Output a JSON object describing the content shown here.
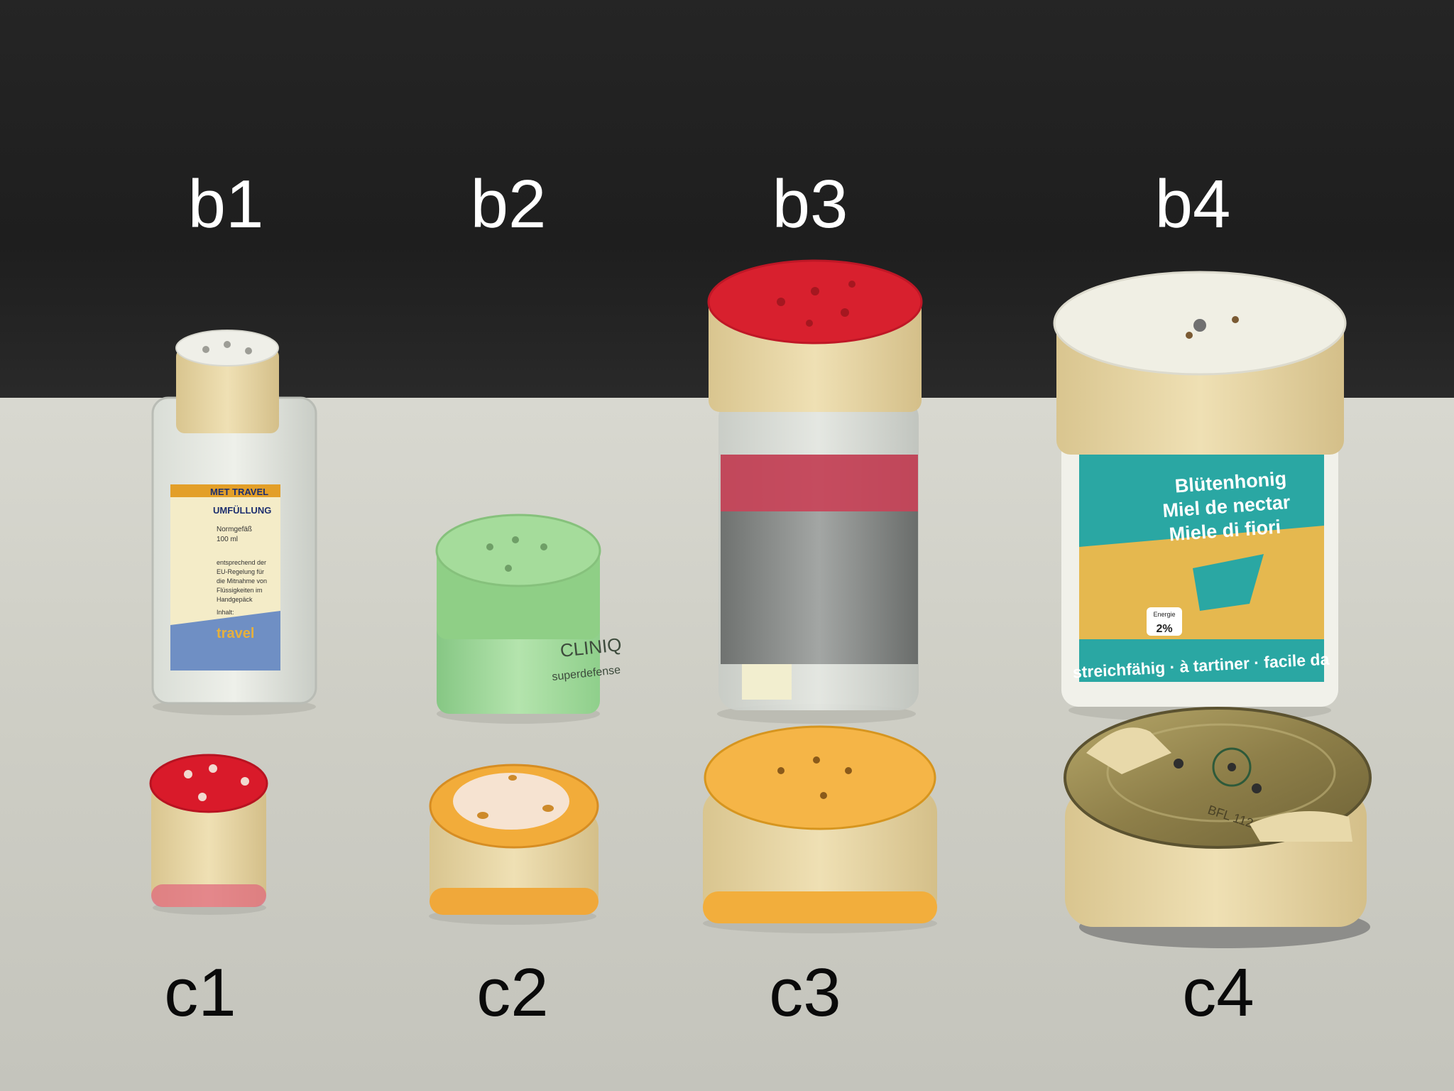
{
  "labels": {
    "b1": "b1",
    "b2": "b2",
    "b3": "b3",
    "b4": "b4",
    "c1": "c1",
    "c2": "c2",
    "c3": "c3",
    "c4": "c4"
  },
  "bottle_b1": {
    "brand": "MET TRAVEL",
    "title": "UMFÜLLUNG",
    "line1": "Normgefäß",
    "line2": "100 ml",
    "body1": "entsprechend der",
    "body2": "EU-Regelung für",
    "body3": "die Mitnahme von",
    "body4": "Flüssigkeiten im",
    "body5": "Handgepäck",
    "inhalt": "Inhalt:",
    "travel": "travel"
  },
  "jar_b2": {
    "brand": "CLINIQ",
    "product": "superdefense"
  },
  "tub_b4": {
    "line1": "Blütenhonig",
    "line2": "Miel de nectar",
    "line3": "Miele di fiori",
    "energy_label": "Energie",
    "energy_value": "2%",
    "bottom": "streichfähig · à tartiner · facile da"
  },
  "lid_c4": {
    "stamp": "BFL 112"
  },
  "colors": {
    "backdrop": "#222222",
    "table": "#cfcfc7",
    "tape": "#e8d8a8",
    "red": "#d81e2c",
    "orange": "#f2ac3a",
    "green": "#9fd89a",
    "teal": "#2aa7a3"
  }
}
